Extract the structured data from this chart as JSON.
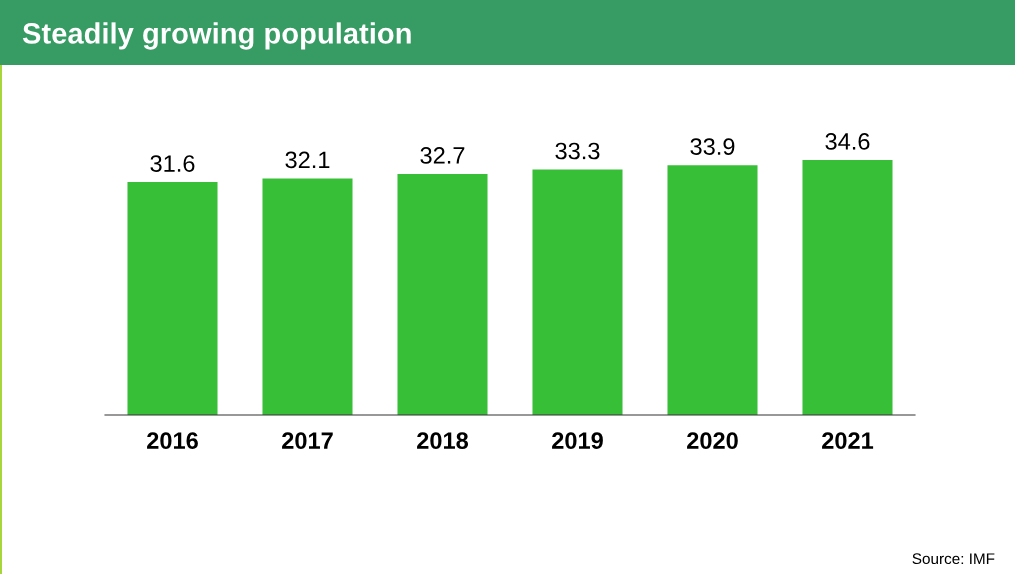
{
  "chart_data": {
    "type": "bar",
    "title": "Steadily growing population",
    "categories": [
      "2016",
      "2017",
      "2018",
      "2019",
      "2020",
      "2021"
    ],
    "values": [
      31.6,
      32.1,
      32.7,
      33.3,
      33.9,
      34.6
    ],
    "color": "#38bf38",
    "data_labels": true,
    "grid": false,
    "legend": false,
    "annotations": [
      "Source: IMF"
    ]
  }
}
